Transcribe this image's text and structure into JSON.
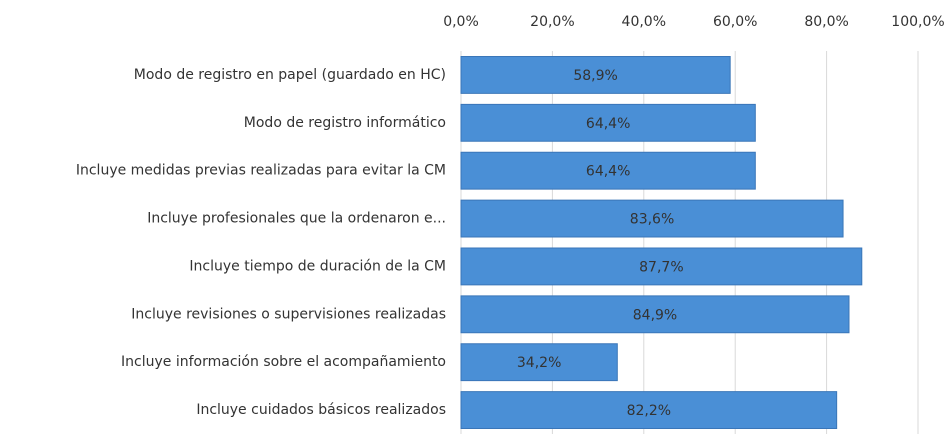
{
  "chart_data": {
    "type": "bar",
    "orientation": "horizontal",
    "categories": [
      "Modo de registro en papel (guardado en HC)",
      "Modo de registro informático",
      "Incluye medidas previas realizadas para evitar la CM",
      "Incluye profesionales que la ordenaron e...",
      "Incluye tiempo de duración de la CM",
      "Incluye revisiones o supervisiones realizadas",
      "Incluye información sobre el acompañamiento",
      "Incluye cuidados básicos realizados"
    ],
    "values": [
      58.9,
      64.4,
      64.4,
      83.6,
      87.7,
      84.9,
      34.2,
      82.2
    ],
    "value_labels": [
      "58,9%",
      "64,4%",
      "64,4%",
      "83,6%",
      "87,7%",
      "84,9%",
      "34,2%",
      "82,2%"
    ],
    "color": "#4a8fd6",
    "xlim": [
      0,
      100
    ],
    "xticks": [
      {
        "value": 0,
        "label": "0,0%"
      },
      {
        "value": 20,
        "label": "20,0%"
      },
      {
        "value": 40,
        "label": "40,0%"
      },
      {
        "value": 60,
        "label": "60,0%"
      },
      {
        "value": 80,
        "label": "80,0%"
      },
      {
        "value": 100,
        "label": "100,0%"
      }
    ],
    "grid": true
  }
}
